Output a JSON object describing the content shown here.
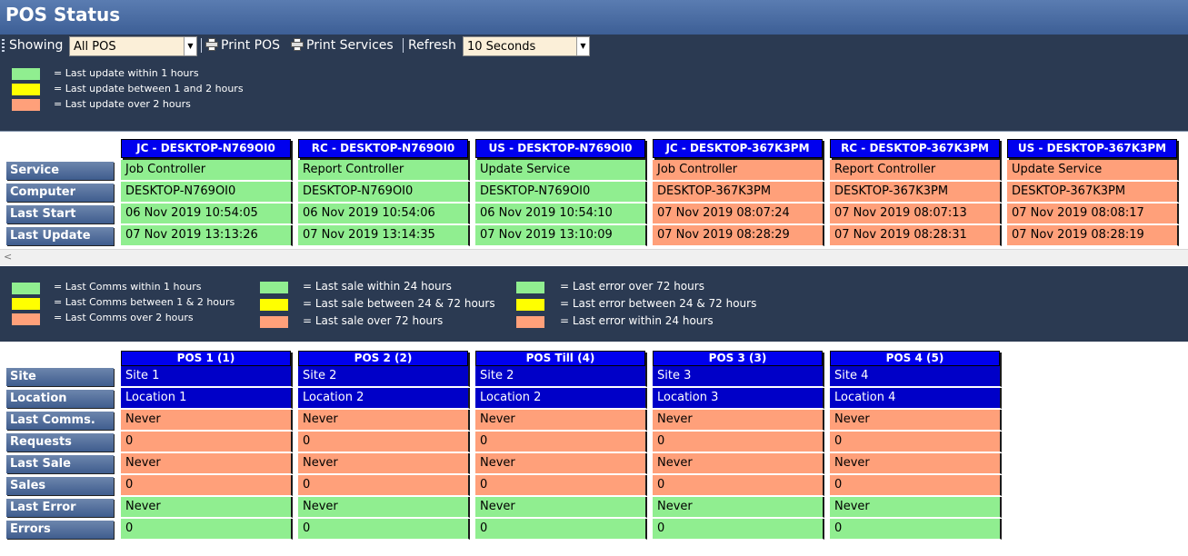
{
  "window": {
    "title": "POS Status"
  },
  "toolbar": {
    "showing_label": "Showing",
    "showing_value": "All POS",
    "print_pos": "Print POS",
    "print_services": "Print Services",
    "refresh_label": "Refresh",
    "refresh_value": "10 Seconds"
  },
  "colors": {
    "green": "#90ee90",
    "yellow": "#ffff00",
    "salmon": "#ffa07a",
    "blue": "#0000c8",
    "header_blue": "#0000ee"
  },
  "legend_services": [
    {
      "color": "green",
      "text": "= Last update within 1 hours"
    },
    {
      "color": "yellow",
      "text": "= Last update between 1 and 2 hours"
    },
    {
      "color": "salmon",
      "text": "= Last update over 2 hours"
    }
  ],
  "services": {
    "row_labels": [
      "Service",
      "Computer",
      "Last Start",
      "Last Update"
    ],
    "columns": [
      {
        "header": "JC - DESKTOP-N769OI0",
        "status": "green",
        "cells": [
          "Job Controller",
          "DESKTOP-N769OI0",
          "06 Nov 2019 10:54:05",
          "07 Nov 2019 13:13:26"
        ]
      },
      {
        "header": "RC - DESKTOP-N769OI0",
        "status": "green",
        "cells": [
          "Report Controller",
          "DESKTOP-N769OI0",
          "06 Nov 2019 10:54:06",
          "07 Nov 2019 13:14:35"
        ]
      },
      {
        "header": "US - DESKTOP-N769OI0",
        "status": "green",
        "cells": [
          "Update Service",
          "DESKTOP-N769OI0",
          "06 Nov 2019 10:54:10",
          "07 Nov 2019 13:10:09"
        ]
      },
      {
        "header": "JC - DESKTOP-367K3PM",
        "status": "salmon",
        "cells": [
          "Job Controller",
          "DESKTOP-367K3PM",
          "07 Nov 2019 08:07:24",
          "07 Nov 2019 08:28:29"
        ]
      },
      {
        "header": "RC - DESKTOP-367K3PM",
        "status": "salmon",
        "cells": [
          "Report Controller",
          "DESKTOP-367K3PM",
          "07 Nov 2019 08:07:13",
          "07 Nov 2019 08:28:31"
        ]
      },
      {
        "header": "US - DESKTOP-367K3PM",
        "status": "salmon",
        "cells": [
          "Update Service",
          "DESKTOP-367K3PM",
          "07 Nov 2019 08:08:17",
          "07 Nov 2019 08:28:19"
        ]
      }
    ]
  },
  "legend_pos": {
    "comms": [
      {
        "color": "green",
        "text": "= Last Comms within 1 hours"
      },
      {
        "color": "yellow",
        "text": "= Last Comms between 1 & 2 hours"
      },
      {
        "color": "salmon",
        "text": "= Last Comms over 2 hours"
      }
    ],
    "sales": [
      {
        "color": "green",
        "text": "= Last sale within 24 hours"
      },
      {
        "color": "yellow",
        "text": "= Last sale between 24 & 72 hours"
      },
      {
        "color": "salmon",
        "text": "= Last sale over 72 hours"
      }
    ],
    "errors": [
      {
        "color": "green",
        "text": "= Last error over 72 hours"
      },
      {
        "color": "yellow",
        "text": "= Last error between 24 & 72 hours"
      },
      {
        "color": "salmon",
        "text": "= Last error within 24 hours"
      }
    ]
  },
  "pos": {
    "row_labels": [
      "Site",
      "Location",
      "Last Comms.",
      "Requests",
      "Last Sale",
      "Sales",
      "Last Error",
      "Errors"
    ],
    "row_colors": [
      "blue",
      "blue",
      "salmon",
      "salmon",
      "salmon",
      "salmon",
      "green",
      "green"
    ],
    "columns": [
      {
        "header": "POS 1 (1)",
        "cells": [
          "Site 1",
          "Location 1",
          "Never",
          "0",
          "Never",
          "0",
          "Never",
          "0"
        ]
      },
      {
        "header": "POS 2 (2)",
        "cells": [
          "Site 2",
          "Location 2",
          "Never",
          "0",
          "Never",
          "0",
          "Never",
          "0"
        ]
      },
      {
        "header": "POS Till (4)",
        "cells": [
          "Site 2",
          "Location 2",
          "Never",
          "0",
          "Never",
          "0",
          "Never",
          "0"
        ]
      },
      {
        "header": "POS 3 (3)",
        "cells": [
          "Site 3",
          "Location 3",
          "Never",
          "0",
          "Never",
          "0",
          "Never",
          "0"
        ]
      },
      {
        "header": "POS 4 (5)",
        "cells": [
          "Site 4",
          "Location 4",
          "Never",
          "0",
          "Never",
          "0",
          "Never",
          "0"
        ]
      }
    ]
  }
}
